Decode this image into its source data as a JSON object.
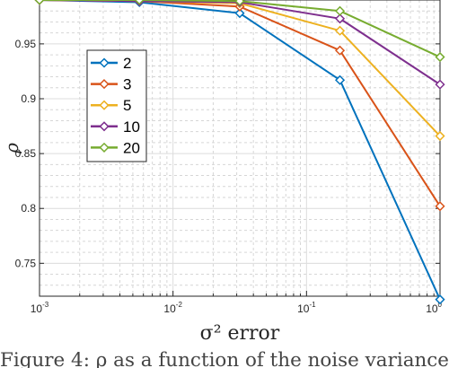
{
  "chart_data": {
    "type": "line",
    "title": "",
    "xlabel": "σ² error",
    "ylabel": "ρ",
    "x_scale": "log",
    "xlim": [
      0.001,
      1
    ],
    "ylim": [
      0.72,
      0.99
    ],
    "grid": true,
    "legend_position": "top-left",
    "x": [
      0.001,
      0.0056,
      0.0316,
      0.178,
      1.0
    ],
    "x_tick_labels": [
      {
        "base": "10",
        "exp": "-3",
        "value": 0.001
      },
      {
        "base": "10",
        "exp": "-2",
        "value": 0.01
      },
      {
        "base": "10",
        "exp": "-1",
        "value": 0.1
      },
      {
        "base": "10",
        "exp": "0",
        "value": 1
      }
    ],
    "y_ticks": [
      0.75,
      0.8,
      0.85,
      0.9,
      0.95
    ],
    "y_tick_labels": [
      "0.75",
      "0.8",
      "0.85",
      "0.9",
      "0.95"
    ],
    "series": [
      {
        "name": "2",
        "color": "#0072BD",
        "values": [
          0.99,
          0.988,
          0.978,
          0.917,
          0.717
        ]
      },
      {
        "name": "3",
        "color": "#D95319",
        "values": [
          0.99,
          0.989,
          0.984,
          0.944,
          0.802
        ]
      },
      {
        "name": "5",
        "color": "#EDB120",
        "values": [
          0.99,
          0.989,
          0.987,
          0.962,
          0.866
        ]
      },
      {
        "name": "10",
        "color": "#7E2F8E",
        "values": [
          0.99,
          0.989,
          0.988,
          0.973,
          0.913
        ]
      },
      {
        "name": "20",
        "color": "#77AC30",
        "values": [
          0.99,
          0.99,
          0.989,
          0.98,
          0.938
        ]
      }
    ]
  },
  "caption_fragment": "Figure 4: ρ as a function of the noise variance"
}
